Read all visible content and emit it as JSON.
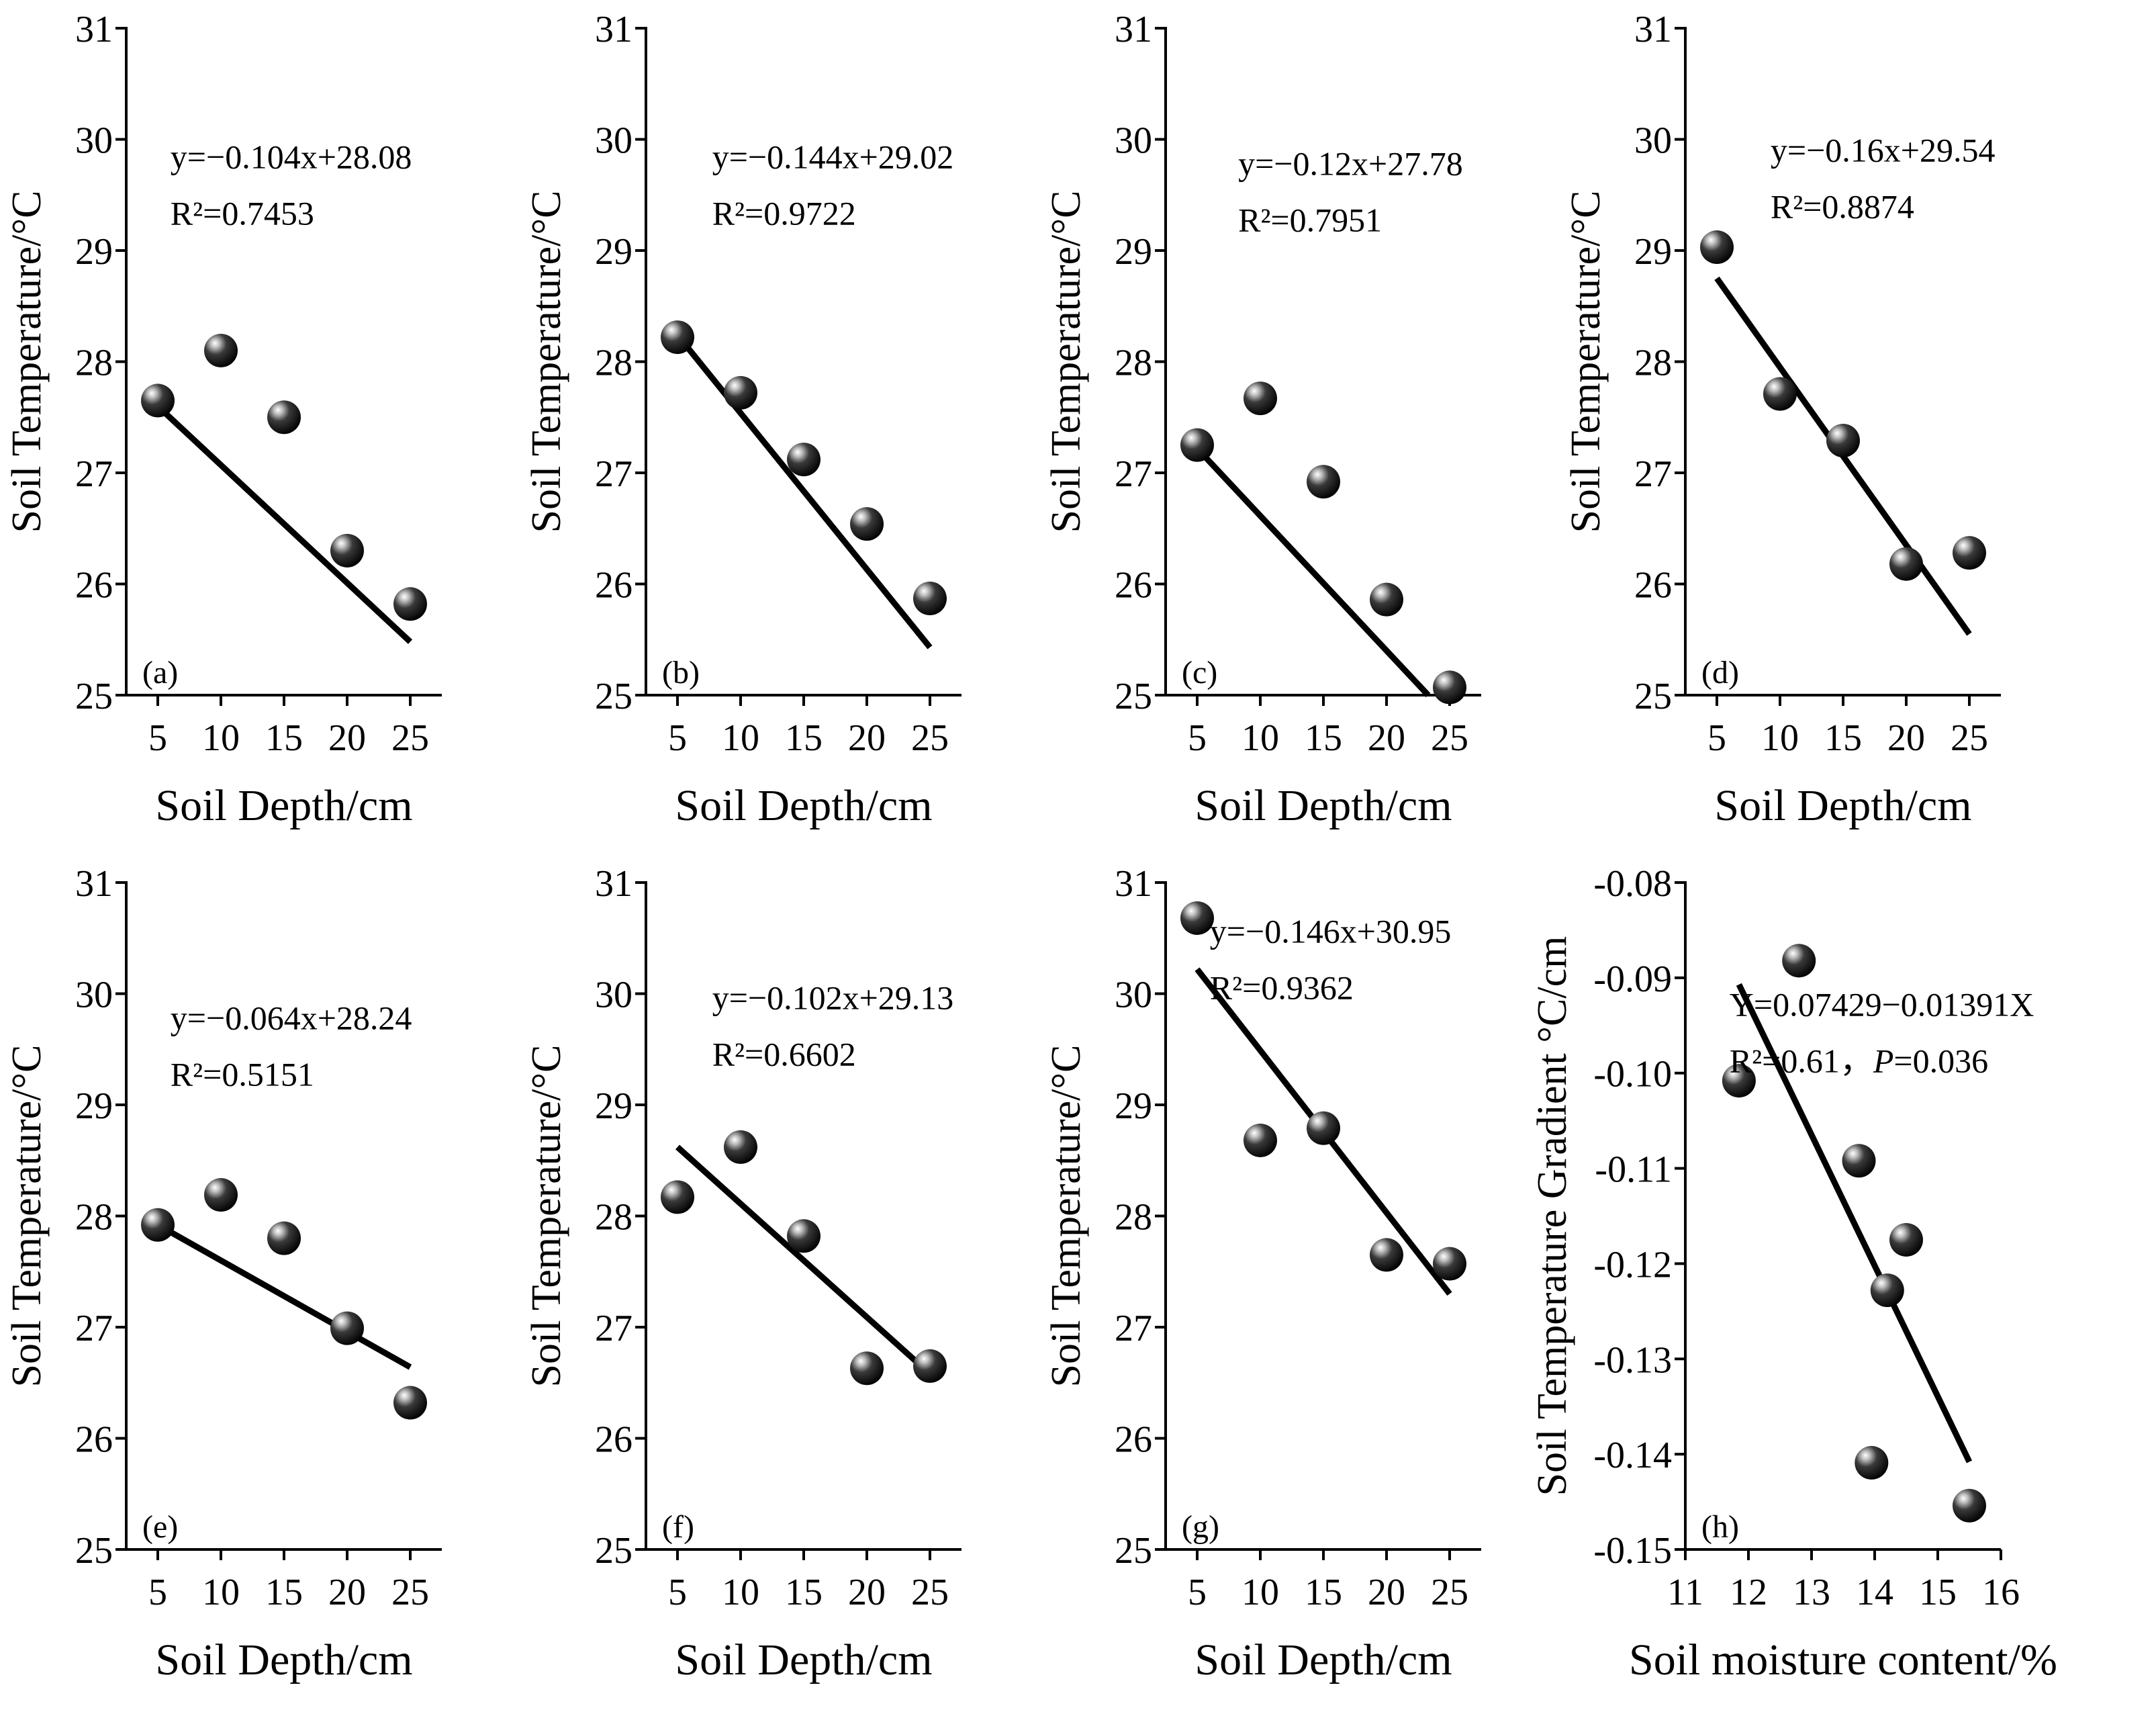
{
  "chart_data": [
    {
      "id": "a",
      "type": "scatter",
      "panel_label": "(a)",
      "x": [
        5,
        10,
        15,
        20,
        25
      ],
      "y": [
        27.65,
        28.1,
        27.5,
        26.3,
        25.82
      ],
      "xlabel": "Soil Depth/cm",
      "ylabel": "Soil Temperature/°C",
      "xlim": [
        2.5,
        27.5
      ],
      "ylim": [
        25,
        31
      ],
      "xticks": [
        5,
        10,
        15,
        20,
        25
      ],
      "xtick_labels": [
        "5",
        "10",
        "15",
        "20",
        "25"
      ],
      "yticks": [
        25,
        26,
        27,
        28,
        29,
        30,
        31
      ],
      "ytick_labels": [
        "25",
        "26",
        "27",
        "28",
        "29",
        "30",
        "31"
      ],
      "fit": {
        "x": [
          5,
          25
        ],
        "y": [
          27.6,
          25.48
        ]
      },
      "equation": "y=−0.104x+28.08",
      "r2": "R²=0.7453"
    },
    {
      "id": "b",
      "type": "scatter",
      "panel_label": "(b)",
      "x": [
        5,
        10,
        15,
        20,
        25
      ],
      "y": [
        28.22,
        27.72,
        27.12,
        26.54,
        25.87
      ],
      "xlabel": "Soil Depth/cm",
      "ylabel": "Soil Temperature/°C",
      "xlim": [
        2.5,
        27.5
      ],
      "ylim": [
        25,
        31
      ],
      "xticks": [
        5,
        10,
        15,
        20,
        25
      ],
      "xtick_labels": [
        "5",
        "10",
        "15",
        "20",
        "25"
      ],
      "yticks": [
        25,
        26,
        27,
        28,
        29,
        30,
        31
      ],
      "ytick_labels": [
        "25",
        "26",
        "27",
        "28",
        "29",
        "30",
        "31"
      ],
      "fit": {
        "x": [
          5,
          25
        ],
        "y": [
          28.24,
          25.43
        ]
      },
      "equation": "y=−0.144x+29.02",
      "r2": "R²=0.9722"
    },
    {
      "id": "c",
      "type": "scatter",
      "panel_label": "(c)",
      "x": [
        5,
        10,
        15,
        20,
        25
      ],
      "y": [
        27.25,
        27.67,
        26.92,
        25.86,
        25.07
      ],
      "xlabel": "Soil Depth/cm",
      "ylabel": "Soil Temperature/°C",
      "xlim": [
        2.5,
        27.5
      ],
      "ylim": [
        25,
        31
      ],
      "xticks": [
        5,
        10,
        15,
        20,
        25
      ],
      "xtick_labels": [
        "5",
        "10",
        "15",
        "20",
        "25"
      ],
      "yticks": [
        25,
        26,
        27,
        28,
        29,
        30,
        31
      ],
      "ytick_labels": [
        "25",
        "26",
        "27",
        "28",
        "29",
        "30",
        "31"
      ],
      "fit": {
        "x": [
          5,
          23.3
        ],
        "y": [
          27.22,
          25.0
        ]
      },
      "equation": "y=−0.12x+27.78",
      "r2": "R²=0.7951"
    },
    {
      "id": "d",
      "type": "scatter",
      "panel_label": "(d)",
      "x": [
        5,
        10,
        15,
        20,
        25
      ],
      "y": [
        29.03,
        27.71,
        27.29,
        26.18,
        26.28
      ],
      "xlabel": "Soil Depth/cm",
      "ylabel": "Soil Temperature/°C",
      "xlim": [
        2.5,
        27.5
      ],
      "ylim": [
        25,
        31
      ],
      "xticks": [
        5,
        10,
        15,
        20,
        25
      ],
      "xtick_labels": [
        "5",
        "10",
        "15",
        "20",
        "25"
      ],
      "yticks": [
        25,
        26,
        27,
        28,
        29,
        30,
        31
      ],
      "ytick_labels": [
        "25",
        "26",
        "27",
        "28",
        "29",
        "30",
        "31"
      ],
      "fit": {
        "x": [
          5,
          25
        ],
        "y": [
          28.75,
          25.55
        ]
      },
      "equation": "y=−0.16x+29.54",
      "r2": "R²=0.8874"
    },
    {
      "id": "e",
      "type": "scatter",
      "panel_label": "(e)",
      "x": [
        5,
        10,
        15,
        20,
        25
      ],
      "y": [
        27.92,
        28.19,
        27.8,
        26.99,
        26.32
      ],
      "xlabel": "Soil Depth/cm",
      "ylabel": "Soil Temperature/°C",
      "xlim": [
        2.5,
        27.5
      ],
      "ylim": [
        25,
        31
      ],
      "xticks": [
        5,
        10,
        15,
        20,
        25
      ],
      "xtick_labels": [
        "5",
        "10",
        "15",
        "20",
        "25"
      ],
      "yticks": [
        25,
        26,
        27,
        28,
        29,
        30,
        31
      ],
      "ytick_labels": [
        "25",
        "26",
        "27",
        "28",
        "29",
        "30",
        "31"
      ],
      "fit": {
        "x": [
          5,
          25
        ],
        "y": [
          27.92,
          26.64
        ]
      },
      "equation": "y=−0.064x+28.24",
      "r2": "R²=0.5151"
    },
    {
      "id": "f",
      "type": "scatter",
      "panel_label": "(f)",
      "x": [
        5,
        10,
        15,
        20,
        25
      ],
      "y": [
        28.17,
        28.62,
        27.82,
        26.63,
        26.65
      ],
      "xlabel": "Soil Depth/cm",
      "ylabel": "Soil Temperature/°C",
      "xlim": [
        2.5,
        27.5
      ],
      "ylim": [
        25,
        31
      ],
      "xticks": [
        5,
        10,
        15,
        20,
        25
      ],
      "xtick_labels": [
        "5",
        "10",
        "15",
        "20",
        "25"
      ],
      "yticks": [
        25,
        26,
        27,
        28,
        29,
        30,
        31
      ],
      "ytick_labels": [
        "25",
        "26",
        "27",
        "28",
        "29",
        "30",
        "31"
      ],
      "fit": {
        "x": [
          5,
          25
        ],
        "y": [
          28.62,
          26.58
        ]
      },
      "equation": "y=−0.102x+29.13",
      "r2": "R²=0.6602"
    },
    {
      "id": "g",
      "type": "scatter",
      "panel_label": "(g)",
      "x": [
        5,
        10,
        15,
        20,
        25
      ],
      "y": [
        30.68,
        28.68,
        28.79,
        27.65,
        27.57
      ],
      "xlabel": "Soil Depth/cm",
      "ylabel": "Soil Temperature/°C",
      "xlim": [
        2.5,
        27.5
      ],
      "ylim": [
        25,
        31
      ],
      "xticks": [
        5,
        10,
        15,
        20,
        25
      ],
      "xtick_labels": [
        "5",
        "10",
        "15",
        "20",
        "25"
      ],
      "yticks": [
        25,
        26,
        27,
        28,
        29,
        30,
        31
      ],
      "ytick_labels": [
        "25",
        "26",
        "27",
        "28",
        "29",
        "30",
        "31"
      ],
      "fit": {
        "x": [
          5,
          25
        ],
        "y": [
          30.22,
          27.3
        ]
      },
      "equation": "y=−0.146x+30.95",
      "r2": "R²=0.9362"
    },
    {
      "id": "h",
      "type": "scatter",
      "panel_label": "(h)",
      "x": [
        11.85,
        12.8,
        13.75,
        14.5,
        14.2,
        13.95,
        15.5
      ],
      "y": [
        -0.1008,
        -0.0882,
        -0.1092,
        -0.1175,
        -0.1228,
        -0.1409,
        -0.1454
      ],
      "xlabel": "Soil moisture content/%",
      "ylabel": "Soil Temperature Gradient °C/cm",
      "xlim": [
        11,
        16
      ],
      "ylim": [
        -0.15,
        -0.08
      ],
      "xticks": [
        11,
        12,
        13,
        14,
        15,
        16
      ],
      "xtick_labels": [
        "11",
        "12",
        "13",
        "14",
        "15",
        "16"
      ],
      "yticks": [
        -0.15,
        -0.14,
        -0.13,
        -0.12,
        -0.11,
        -0.1,
        -0.09,
        -0.08
      ],
      "ytick_labels": [
        "-0.15",
        "-0.14",
        "-0.13",
        "-0.12",
        "-0.11",
        "-0.10",
        "-0.09",
        "-0.08"
      ],
      "fit": {
        "x": [
          11.85,
          15.5
        ],
        "y": [
          -0.0907,
          -0.1408
        ]
      },
      "equation": "Y=0.07429−0.01391X",
      "r2": "R²=0.61，",
      "p_label": "P",
      "p_value": "=0.036"
    }
  ]
}
